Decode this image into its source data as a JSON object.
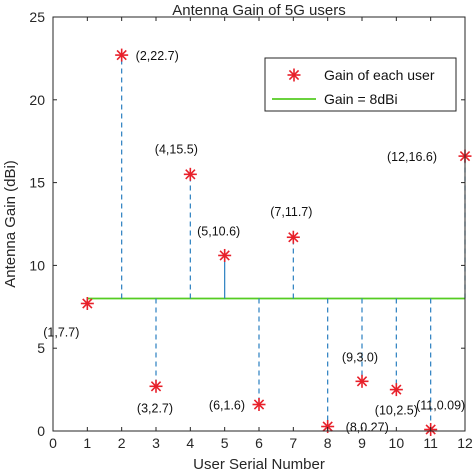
{
  "chart_data": {
    "type": "scatter",
    "title": "Antenna Gain of 5G users",
    "xlabel": "User Serial Number",
    "ylabel": "Antenna Gain (dBi)",
    "xlim": [
      0,
      12
    ],
    "ylim": [
      0,
      25
    ],
    "xticks": [
      "0",
      "1",
      "2",
      "3",
      "4",
      "5",
      "6",
      "7",
      "8",
      "9",
      "10",
      "11",
      "12"
    ],
    "yticks": [
      "0",
      "5",
      "10",
      "15",
      "20",
      "25"
    ],
    "grid": false,
    "legend_position": "top-right",
    "threshold": 8,
    "series": [
      {
        "name": "Gain of each user",
        "color": "#e8202a",
        "marker": "asterisk",
        "x": [
          1,
          2,
          3,
          4,
          5,
          6,
          7,
          8,
          9,
          10,
          11,
          12
        ],
        "y": [
          7.7,
          22.7,
          2.7,
          15.5,
          10.6,
          1.6,
          11.7,
          0.27,
          3.0,
          2.5,
          0.09,
          16.6
        ]
      },
      {
        "name": "Gain = 8dBi",
        "color": "#55cc22",
        "type": "line",
        "y": 8
      }
    ],
    "annotations": [
      "(1,7.7)",
      "(2,22.7)",
      "(3,2.7)",
      "(4,15.5)",
      "(5,10.6)",
      "(6,1.6)",
      "(7,11.7)",
      "(8,0.27)",
      "(9,3.0)",
      "(10,2.5)",
      "(11,0.09)",
      "(12,16.6)"
    ],
    "stem_color": "#2a7fc0"
  }
}
